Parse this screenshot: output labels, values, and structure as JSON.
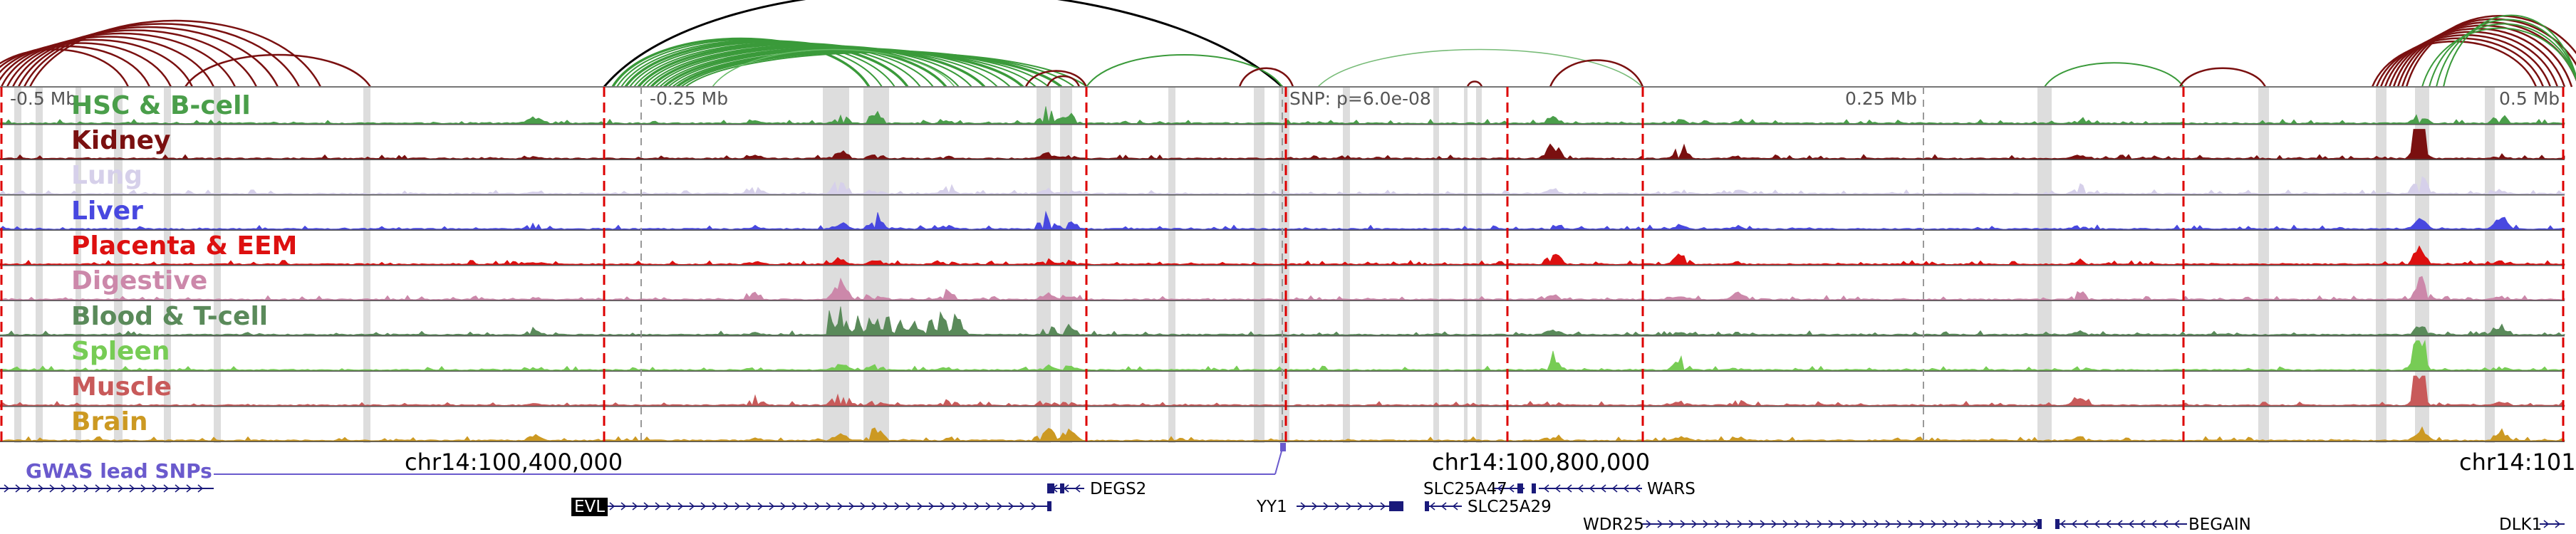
{
  "tracks": [
    {
      "label": "HSC & B-cell",
      "color": "#4a9e4a"
    },
    {
      "label": "Kidney",
      "color": "#7a1010"
    },
    {
      "label": "Lung",
      "color": "#d6d0ea"
    },
    {
      "label": "Liver",
      "color": "#4848e0"
    },
    {
      "label": "Placenta & EEM",
      "color": "#dd1010"
    },
    {
      "label": "Digestive",
      "color": "#cc88aa"
    },
    {
      "label": "Blood & T-cell",
      "color": "#5a8a5a"
    },
    {
      "label": "Spleen",
      "color": "#77cc55"
    },
    {
      "label": "Muscle",
      "color": "#c85a5a"
    },
    {
      "label": "Brain",
      "color": "#cc9922"
    }
  ],
  "ruler": {
    "labels": [
      "-0.5 Mb",
      "-0.25 Mb",
      "SNP: p=6.0e-08",
      "0.25 Mb",
      "0.5 Mb"
    ]
  },
  "coordinates": [
    "chr14:100,400,000",
    "chr14:100,800,000",
    "chr14:101"
  ],
  "gwas": {
    "label": "GWAS lead SNPs",
    "color": "#6a5acd"
  },
  "genes": {
    "evl": "EVL",
    "degs2": "DEGS2",
    "yy1": "YY1",
    "slc25a47": "SLC25A47",
    "wars": "WARS",
    "slc25a29": "SLC25A29",
    "wdr25": "WDR25",
    "begain": "BEGAIN",
    "dlk1": "DLK1"
  },
  "colors": {
    "loop_dark": "#7a1010",
    "loop_green": "#3a9a3a",
    "loop_black": "#000000",
    "highlight": "#dddddd",
    "dashed_red": "#dd0000",
    "gene_blue": "#1a1a7a"
  }
}
